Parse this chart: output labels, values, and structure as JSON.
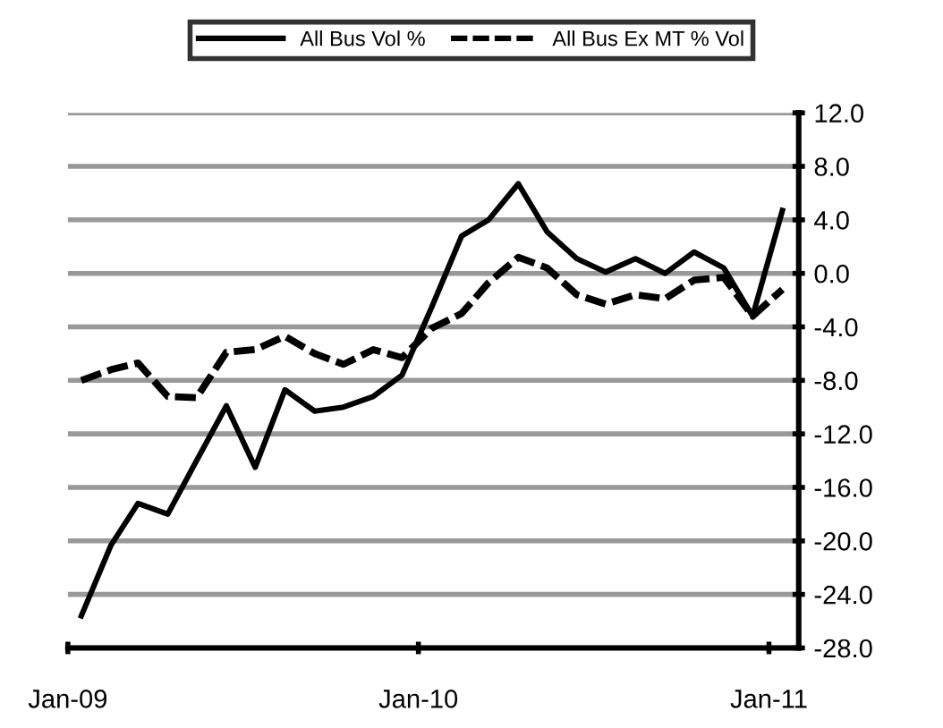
{
  "chart_data": {
    "type": "line",
    "x": [
      "2009-01-15",
      "2009-02-15",
      "2009-03-15",
      "2009-04-15",
      "2009-05-15",
      "2009-06-15",
      "2009-07-15",
      "2009-08-15",
      "2009-09-15",
      "2009-10-15",
      "2009-11-15",
      "2009-12-15",
      "2010-01-15",
      "2010-02-15",
      "2010-03-15",
      "2010-04-15",
      "2010-05-15",
      "2010-06-15",
      "2010-07-15",
      "2010-08-15",
      "2010-09-15",
      "2010-10-15",
      "2010-11-15",
      "2010-12-15",
      "2011-01-15"
    ],
    "series": [
      {
        "name": "All Bus Vol %",
        "color": "#000000",
        "line_style": "solid",
        "values": [
          -25.6,
          -20.3,
          -17.2,
          -18.0,
          -14.0,
          -9.9,
          -14.5,
          -8.7,
          -10.3,
          -10.0,
          -9.2,
          -7.6,
          -2.5,
          2.8,
          4.0,
          6.7,
          3.1,
          1.1,
          0.1,
          1.1,
          0.0,
          1.6,
          0.4,
          -3.2,
          4.7
        ]
      },
      {
        "name": "All Bus Ex MT % Vol",
        "color": "#000000",
        "line_style": "dashed",
        "values": [
          -8.0,
          -7.2,
          -6.7,
          -9.2,
          -9.3,
          -5.9,
          -5.7,
          -4.7,
          -6.0,
          -6.8,
          -5.7,
          -6.3,
          -4.1,
          -3.0,
          -0.7,
          1.2,
          0.4,
          -1.6,
          -2.3,
          -1.6,
          -1.9,
          -0.5,
          -0.3,
          -3.2,
          -1.2
        ]
      }
    ],
    "xlim": [
      "2009-01-01",
      "2011-02-01"
    ],
    "xticks": [
      {
        "value": "2009-01-01",
        "label": "Jan-09"
      },
      {
        "value": "2010-01-01",
        "label": "Jan-10"
      },
      {
        "value": "2011-01-01",
        "label": "Jan-11"
      }
    ],
    "ylim": [
      -28,
      12
    ],
    "yticks": [
      {
        "value": 12,
        "label": "12.0"
      },
      {
        "value": 8,
        "label": "8.0"
      },
      {
        "value": 4,
        "label": "4.0"
      },
      {
        "value": 0,
        "label": "0.0"
      },
      {
        "value": -4,
        "label": "-4.0"
      },
      {
        "value": -8,
        "label": "-8.0"
      },
      {
        "value": -12,
        "label": "-12.0"
      },
      {
        "value": -16,
        "label": "-16.0"
      },
      {
        "value": -20,
        "label": "-20.0"
      },
      {
        "value": -24,
        "label": "-24.0"
      },
      {
        "value": -28,
        "label": "-28.0"
      }
    ],
    "grid": "y",
    "legend": "top"
  }
}
